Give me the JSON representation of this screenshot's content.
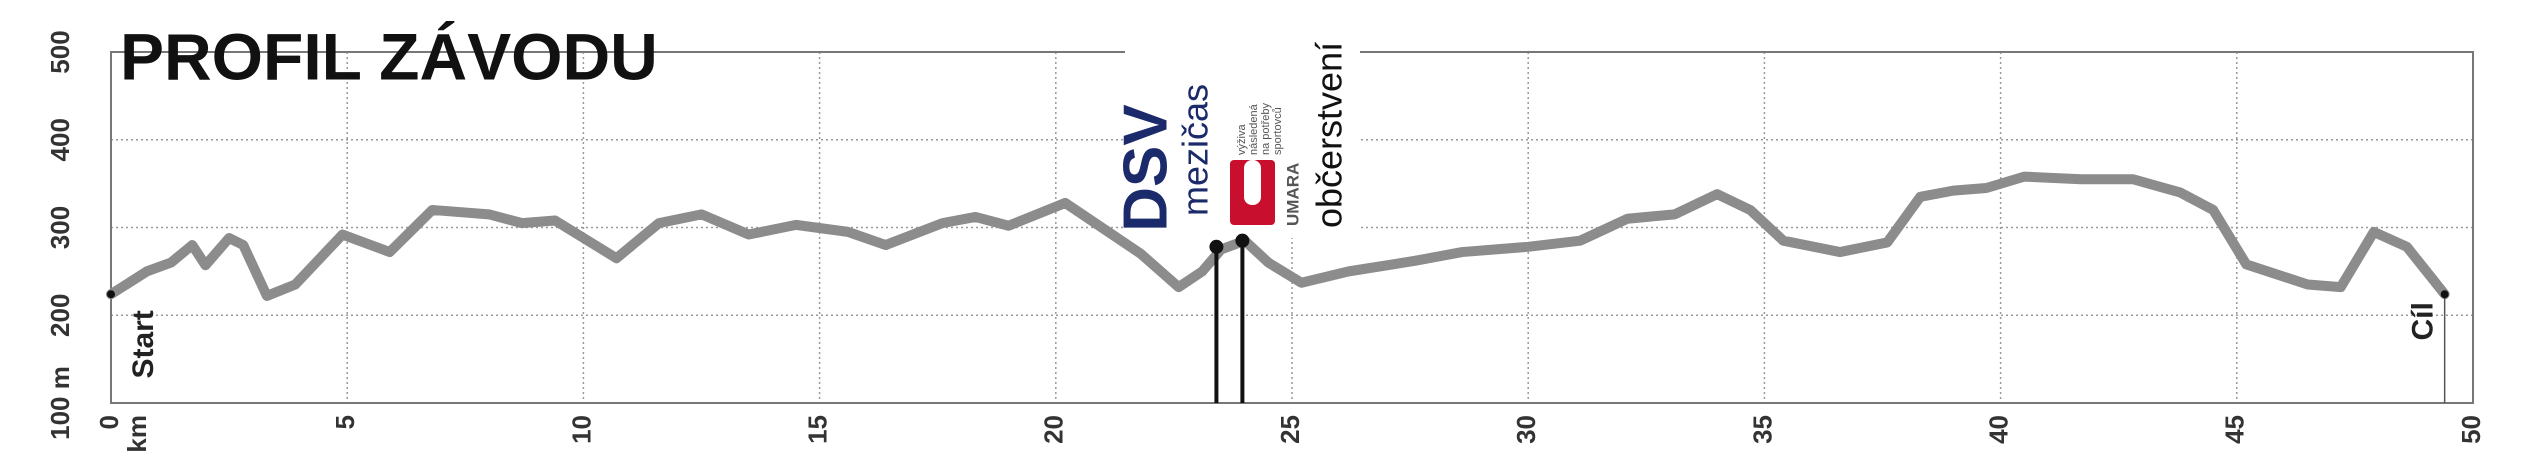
{
  "chart_data": {
    "type": "line",
    "title": "PROFIL ZÁVODU",
    "x_unit": "km",
    "x": [
      0,
      0.76,
      1.27,
      1.72,
      2.0,
      2.5,
      2.8,
      3.3,
      3.9,
      4.9,
      5.9,
      6.8,
      8.0,
      8.7,
      9.4,
      10.7,
      11.6,
      12.5,
      13.5,
      14.5,
      15.6,
      16.4,
      17.6,
      18.3,
      19.0,
      20.2,
      21.8,
      22.6,
      23.1,
      23.5,
      24.0,
      24.5,
      25.2,
      26.2,
      27.6,
      28.6,
      30.0,
      31.1,
      32.1,
      33.1,
      34.0,
      34.7,
      35.4,
      36.6,
      37.6,
      38.3,
      39.0,
      39.7,
      40.5,
      41.7,
      42.8,
      43.8,
      44.5,
      45.2,
      46.5,
      47.2,
      47.9,
      48.6,
      49.4
    ],
    "values": [
      224,
      250,
      260,
      280,
      257,
      288,
      280,
      222,
      235,
      292,
      272,
      320,
      315,
      305,
      308,
      265,
      305,
      315,
      292,
      303,
      295,
      280,
      305,
      312,
      302,
      328,
      270,
      232,
      250,
      275,
      285,
      260,
      237,
      250,
      262,
      272,
      278,
      285,
      310,
      315,
      338,
      320,
      285,
      272,
      283,
      335,
      342,
      345,
      358,
      355,
      355,
      340,
      320,
      258,
      235,
      232,
      295,
      278,
      224
    ],
    "color": "#8c8c8c",
    "xlim": [
      0,
      50
    ],
    "xticks": [
      0,
      5,
      10,
      15,
      20,
      25,
      30,
      35,
      40,
      45,
      50
    ],
    "ylim": [
      100,
      500
    ],
    "yticks": [
      {
        "value": 100,
        "label": "100 m"
      },
      200,
      300,
      400,
      500
    ],
    "grid": true,
    "start_label": "Start",
    "finish_label": "Cíl",
    "markers": [
      {
        "label": "mezičas",
        "x": 23.4,
        "y": 278
      },
      {
        "label": "občerstvení",
        "x": 23.95,
        "y": 285
      }
    ],
    "logos": {
      "dsv": "DSV",
      "umara": "UMARA",
      "umara_tagline": [
        "výživa",
        "následená",
        "na potřeby",
        "sportovců"
      ]
    }
  }
}
